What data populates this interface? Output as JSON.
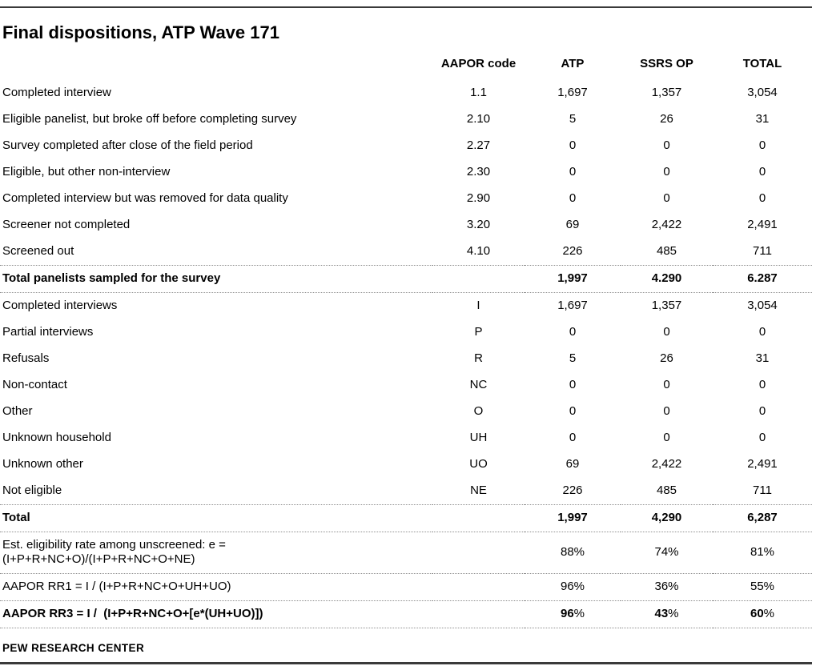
{
  "page": {
    "title": "Final dispositions, ATP Wave 171",
    "footer": "PEW RESEARCH CENTER"
  },
  "table": {
    "columns": [
      "AAPOR code",
      "ATP",
      "SSRS OP",
      "TOTAL"
    ],
    "rows": [
      {
        "label": "Completed interview",
        "code": "1.1",
        "atp": "1,697",
        "ssrs": "1,357",
        "total": "3,054"
      },
      {
        "label": "Eligible panelist, but broke off before completing survey",
        "code": "2.10",
        "atp": "5",
        "ssrs": "26",
        "total": "31"
      },
      {
        "label": "Survey completed after close of the field period",
        "code": "2.27",
        "atp": "0",
        "ssrs": "0",
        "total": "0"
      },
      {
        "label": "Eligible, but other non-interview",
        "code": "2.30",
        "atp": "0",
        "ssrs": "0",
        "total": "0"
      },
      {
        "label": "Completed interview but was removed for data quality",
        "code": "2.90",
        "atp": "0",
        "ssrs": "0",
        "total": "0"
      },
      {
        "label": "Screener not completed",
        "code": "3.20",
        "atp": "69",
        "ssrs": "2,422",
        "total": "2,491"
      },
      {
        "label": "Screened out",
        "code": "4.10",
        "atp": "226",
        "ssrs": "485",
        "total": "711"
      },
      {
        "label": "Total panelists sampled for the survey",
        "code": "",
        "atp": "1,997",
        "ssrs": "4.290",
        "total": "6.287",
        "bold": true,
        "sep": true
      },
      {
        "label": "Completed interviews",
        "code": "I",
        "atp": "1,697",
        "ssrs": "1,357",
        "total": "3,054"
      },
      {
        "label": "Partial interviews",
        "code": "P",
        "atp": "0",
        "ssrs": "0",
        "total": "0"
      },
      {
        "label": "Refusals",
        "code": "R",
        "atp": "5",
        "ssrs": "26",
        "total": "31"
      },
      {
        "label": "Non-contact",
        "code": "NC",
        "atp": "0",
        "ssrs": "0",
        "total": "0"
      },
      {
        "label": "Other",
        "code": "O",
        "atp": "0",
        "ssrs": "0",
        "total": "0"
      },
      {
        "label": "Unknown household",
        "code": "UH",
        "atp": "0",
        "ssrs": "0",
        "total": "0"
      },
      {
        "label": "Unknown other",
        "code": "UO",
        "atp": "69",
        "ssrs": "2,422",
        "total": "2,491"
      },
      {
        "label": "Not eligible",
        "code": "NE",
        "atp": "226",
        "ssrs": "485",
        "total": "711"
      },
      {
        "label": "Total",
        "code": "",
        "atp": "1,997",
        "ssrs": "4,290",
        "total": "6,287",
        "bold": true,
        "sep": true
      },
      {
        "label": "Est. eligibility rate among unscreened: e =",
        "label2": "(I+P+R+NC+O)/(I+P+R+NC+O+NE)",
        "code": "",
        "atp": "88%",
        "ssrs": "74%",
        "total": "81%",
        "sep": true
      },
      {
        "label": "AAPOR RR1 = I / (I+P+R+NC+O+UH+UO)",
        "code": "",
        "atp": "96%",
        "ssrs": "36%",
        "total": "55%",
        "sep": true
      },
      {
        "label": "AAPOR RR3 = I /  (I+P+R+NC+O+[e*(UH+UO)])",
        "code": "",
        "atp": "96%",
        "ssrs": "43%",
        "total": "60%",
        "bold": true,
        "sep": true,
        "pct_split": true
      }
    ]
  }
}
